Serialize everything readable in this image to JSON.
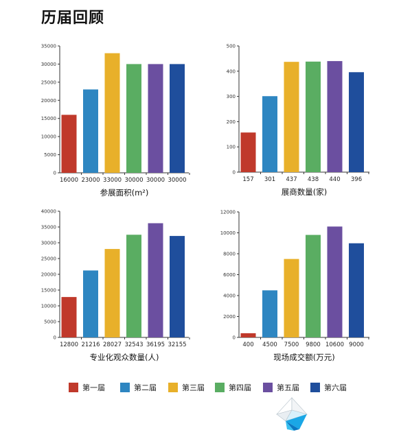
{
  "page": {
    "title": "历届回顾"
  },
  "colors": [
    "#c0392b",
    "#2e86c1",
    "#e8b02a",
    "#5aad62",
    "#6b4fa0",
    "#1f4e9c"
  ],
  "legend": [
    "第一届",
    "第二届",
    "第三届",
    "第四届",
    "第五届",
    "第六届"
  ],
  "chart_data": [
    {
      "type": "bar",
      "title": "参展面积(m²)",
      "categories": [
        "16000",
        "23000",
        "33000",
        "30000",
        "30000",
        "30000"
      ],
      "values": [
        16000,
        23000,
        33000,
        30000,
        30000,
        30000
      ],
      "ylim": [
        0,
        35000
      ],
      "yticks": [
        0,
        5000,
        10000,
        15000,
        20000,
        25000,
        30000,
        35000
      ],
      "grid": false
    },
    {
      "type": "bar",
      "title": "展商数量(家)",
      "categories": [
        "157",
        "301",
        "437",
        "438",
        "440",
        "396"
      ],
      "values": [
        157,
        301,
        437,
        438,
        440,
        396
      ],
      "ylim": [
        0,
        500
      ],
      "yticks": [
        0,
        100,
        200,
        300,
        400,
        500
      ],
      "grid": false
    },
    {
      "type": "bar",
      "title": "专业化观众数量(人)",
      "categories": [
        "12800",
        "21216",
        "28027",
        "32543",
        "36195",
        "32155"
      ],
      "values": [
        12800,
        21216,
        28027,
        32543,
        36195,
        32155
      ],
      "ylim": [
        0,
        40000
      ],
      "yticks": [
        0,
        5000,
        10000,
        15000,
        20000,
        25000,
        30000,
        35000,
        40000
      ],
      "grid": false
    },
    {
      "type": "bar",
      "title": "现场成交额(万元)",
      "categories": [
        "400",
        "4500",
        "7500",
        "9800",
        "10600",
        "9000"
      ],
      "values": [
        400,
        4500,
        7500,
        9800,
        10600,
        9000
      ],
      "ylim": [
        0,
        12000
      ],
      "yticks": [
        0,
        2000,
        4000,
        6000,
        8000,
        10000,
        12000
      ],
      "grid": false
    }
  ]
}
